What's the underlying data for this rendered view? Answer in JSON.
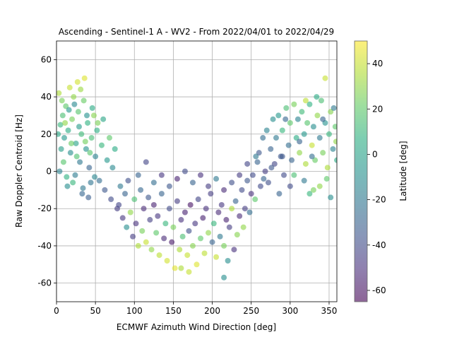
{
  "chart_data": {
    "type": "scatter",
    "title": "Ascending - Sentinel-1 A - WV2 - From 2022/04/01 to 2022/04/29",
    "xlabel": "ECMWF Azimuth Wind Direction [deg]",
    "ylabel": "Raw Doppler Centroid [Hz]",
    "xlim": [
      0,
      360
    ],
    "ylim": [
      -70,
      70
    ],
    "xticks": [
      0,
      50,
      100,
      150,
      200,
      250,
      300,
      350
    ],
    "yticks": [
      -60,
      -40,
      -20,
      0,
      20,
      40,
      60
    ],
    "grid": true,
    "colorbar": {
      "label": "Latitude [deg]",
      "range": [
        -65,
        50
      ],
      "ticks": [
        -60,
        -40,
        -20,
        0,
        20,
        40
      ],
      "colormap": "viridis"
    },
    "point_opacity": 0.6,
    "points": [
      [
        5,
        25,
        10
      ],
      [
        8,
        30,
        15
      ],
      [
        10,
        18,
        -5
      ],
      [
        12,
        35,
        20
      ],
      [
        15,
        22,
        5
      ],
      [
        18,
        10,
        -10
      ],
      [
        20,
        28,
        25
      ],
      [
        22,
        40,
        30
      ],
      [
        25,
        15,
        0
      ],
      [
        28,
        32,
        18
      ],
      [
        30,
        5,
        -20
      ],
      [
        32,
        20,
        12
      ],
      [
        35,
        38,
        22
      ],
      [
        38,
        12,
        -8
      ],
      [
        40,
        26,
        8
      ],
      [
        42,
        2,
        -30
      ],
      [
        45,
        18,
        14
      ],
      [
        48,
        30,
        28
      ],
      [
        50,
        8,
        -15
      ],
      [
        52,
        22,
        6
      ],
      [
        55,
        -5,
        -25
      ],
      [
        58,
        14,
        10
      ],
      [
        60,
        28,
        2
      ],
      [
        62,
        -10,
        -35
      ],
      [
        65,
        6,
        -5
      ],
      [
        68,
        18,
        20
      ],
      [
        70,
        -15,
        -40
      ],
      [
        72,
        2,
        -12
      ],
      [
        75,
        12,
        5
      ],
      [
        78,
        -20,
        -45
      ],
      [
        3,
        42,
        35
      ],
      [
        6,
        12,
        -2
      ],
      [
        9,
        5,
        18
      ],
      [
        14,
        -8,
        -10
      ],
      [
        17,
        45,
        40
      ],
      [
        24,
        -2,
        -18
      ],
      [
        27,
        48,
        42
      ],
      [
        33,
        -12,
        -28
      ],
      [
        36,
        50,
        44
      ],
      [
        44,
        -6,
        -22
      ],
      [
        2,
        20,
        3
      ],
      [
        4,
        0,
        -15
      ],
      [
        7,
        38,
        25
      ],
      [
        11,
        26,
        30
      ],
      [
        13,
        -3,
        8
      ],
      [
        16,
        33,
        -5
      ],
      [
        19,
        15,
        22
      ],
      [
        21,
        -6,
        10
      ],
      [
        23,
        36,
        -12
      ],
      [
        26,
        8,
        16
      ],
      [
        29,
        24,
        -3
      ],
      [
        31,
        44,
        32
      ],
      [
        34,
        -9,
        -20
      ],
      [
        37,
        16,
        24
      ],
      [
        39,
        30,
        -8
      ],
      [
        41,
        -14,
        -32
      ],
      [
        43,
        10,
        18
      ],
      [
        46,
        34,
        4
      ],
      [
        49,
        -3,
        -14
      ],
      [
        53,
        26,
        26
      ],
      [
        80,
        -18,
        -42
      ],
      [
        82,
        -8,
        -20
      ],
      [
        85,
        -25,
        -48
      ],
      [
        88,
        -12,
        -30
      ],
      [
        90,
        -30,
        -10
      ],
      [
        92,
        -5,
        -38
      ],
      [
        95,
        -22,
        30
      ],
      [
        98,
        -35,
        -45
      ],
      [
        100,
        -15,
        15
      ],
      [
        102,
        -28,
        -50
      ],
      [
        105,
        -40,
        35
      ],
      [
        108,
        -10,
        -28
      ],
      [
        110,
        -32,
        25
      ],
      [
        112,
        -20,
        -52
      ],
      [
        115,
        -38,
        40
      ],
      [
        118,
        -14,
        -35
      ],
      [
        120,
        -26,
        -44
      ],
      [
        122,
        -42,
        30
      ],
      [
        125,
        -18,
        -55
      ],
      [
        128,
        -33,
        20
      ],
      [
        130,
        -24,
        -48
      ],
      [
        132,
        -45,
        38
      ],
      [
        135,
        -12,
        -30
      ],
      [
        138,
        -36,
        -52
      ],
      [
        140,
        -28,
        10
      ],
      [
        142,
        -48,
        42
      ],
      [
        145,
        -20,
        -40
      ],
      [
        148,
        -38,
        -58
      ],
      [
        150,
        -30,
        25
      ],
      [
        152,
        -52,
        45
      ],
      [
        155,
        -16,
        -45
      ],
      [
        158,
        -42,
        35
      ],
      [
        160,
        -26,
        -50
      ],
      [
        162,
        -35,
        15
      ],
      [
        165,
        -22,
        -55
      ],
      [
        168,
        -45,
        40
      ],
      [
        170,
        -32,
        -38
      ],
      [
        172,
        -18,
        -60
      ],
      [
        175,
        -40,
        28
      ],
      [
        178,
        -28,
        -48
      ],
      [
        180,
        -50,
        44
      ],
      [
        182,
        -15,
        -42
      ],
      [
        185,
        -36,
        20
      ],
      [
        188,
        -25,
        -55
      ],
      [
        190,
        -44,
        38
      ],
      [
        192,
        -20,
        -50
      ],
      [
        195,
        -33,
        30
      ],
      [
        198,
        -12,
        -45
      ],
      [
        200,
        -38,
        -30
      ],
      [
        202,
        -28,
        10
      ],
      [
        205,
        -46,
        40
      ],
      [
        208,
        -22,
        -52
      ],
      [
        210,
        -35,
        -20
      ],
      [
        212,
        -18,
        -48
      ],
      [
        215,
        -40,
        25
      ],
      [
        218,
        -26,
        -55
      ],
      [
        220,
        -48,
        -10
      ],
      [
        222,
        -30,
        -45
      ],
      [
        225,
        -20,
        35
      ],
      [
        228,
        -42,
        -50
      ],
      [
        230,
        -16,
        -30
      ],
      [
        232,
        -34,
        28
      ],
      [
        235,
        -24,
        -52
      ],
      [
        238,
        -10,
        -40
      ],
      [
        240,
        -30,
        30
      ],
      [
        242,
        -20,
        -45
      ],
      [
        245,
        -5,
        -35
      ],
      [
        248,
        -22,
        -25
      ],
      [
        250,
        -12,
        -50
      ],
      [
        252,
        -2,
        -40
      ],
      [
        255,
        -15,
        20
      ],
      [
        258,
        5,
        -30
      ],
      [
        105,
        -2,
        -30
      ],
      [
        115,
        5,
        -42
      ],
      [
        125,
        -6,
        -25
      ],
      [
        135,
        -2,
        -48
      ],
      [
        145,
        -8,
        -35
      ],
      [
        155,
        -4,
        -55
      ],
      [
        165,
        0,
        -40
      ],
      [
        175,
        -6,
        -30
      ],
      [
        185,
        -2,
        -50
      ],
      [
        195,
        -8,
        -45
      ],
      [
        205,
        -4,
        -20
      ],
      [
        215,
        -10,
        -52
      ],
      [
        225,
        -6,
        -38
      ],
      [
        235,
        -2,
        -45
      ],
      [
        245,
        4,
        -42
      ],
      [
        215,
        -57,
        -10
      ],
      [
        160,
        -52,
        35
      ],
      [
        170,
        -54,
        40
      ],
      [
        260,
        10,
        -35
      ],
      [
        262,
        -8,
        -40
      ],
      [
        265,
        18,
        -25
      ],
      [
        268,
        0,
        -45
      ],
      [
        270,
        22,
        -15
      ],
      [
        272,
        -6,
        -38
      ],
      [
        275,
        12,
        -30
      ],
      [
        278,
        28,
        -10
      ],
      [
        280,
        4,
        -42
      ],
      [
        282,
        18,
        -20
      ],
      [
        285,
        30,
        -5
      ],
      [
        288,
        8,
        -35
      ],
      [
        290,
        22,
        10
      ],
      [
        292,
        -2,
        -40
      ],
      [
        295,
        34,
        15
      ],
      [
        298,
        14,
        -25
      ],
      [
        300,
        26,
        20
      ],
      [
        302,
        6,
        -30
      ],
      [
        305,
        36,
        25
      ],
      [
        308,
        18,
        5
      ],
      [
        310,
        28,
        -15
      ],
      [
        312,
        10,
        30
      ],
      [
        315,
        32,
        12
      ],
      [
        318,
        20,
        -5
      ],
      [
        320,
        4,
        35
      ],
      [
        322,
        26,
        18
      ],
      [
        325,
        36,
        8
      ],
      [
        328,
        14,
        40
      ],
      [
        330,
        24,
        -10
      ],
      [
        332,
        6,
        22
      ],
      [
        335,
        30,
        30
      ],
      [
        338,
        18,
        -20
      ],
      [
        340,
        38,
        15
      ],
      [
        342,
        10,
        25
      ],
      [
        345,
        26,
        -8
      ],
      [
        348,
        2,
        35
      ],
      [
        350,
        20,
        10
      ],
      [
        352,
        32,
        28
      ],
      [
        355,
        12,
        -15
      ],
      [
        358,
        24,
        20
      ],
      [
        360,
        6,
        5
      ],
      [
        345,
        50,
        40
      ],
      [
        318,
        -5,
        -20
      ],
      [
        325,
        -12,
        10
      ],
      [
        338,
        -8,
        30
      ],
      [
        352,
        -14,
        -10
      ],
      [
        305,
        -2,
        15
      ],
      [
        312,
        16,
        -30
      ],
      [
        328,
        8,
        -25
      ],
      [
        342,
        28,
        -30
      ],
      [
        356,
        34,
        -20
      ],
      [
        334,
        40,
        5
      ],
      [
        347,
        -4,
        20
      ],
      [
        359,
        16,
        30
      ],
      [
        300,
        -8,
        -40
      ],
      [
        290,
        8,
        -35
      ],
      [
        330,
        -10,
        25
      ],
      [
        320,
        38,
        38
      ],
      [
        294,
        28,
        -28
      ],
      [
        286,
        -12,
        -30
      ],
      [
        276,
        2,
        -35
      ],
      [
        266,
        -4,
        -30
      ],
      [
        256,
        8,
        -20
      ]
    ]
  }
}
